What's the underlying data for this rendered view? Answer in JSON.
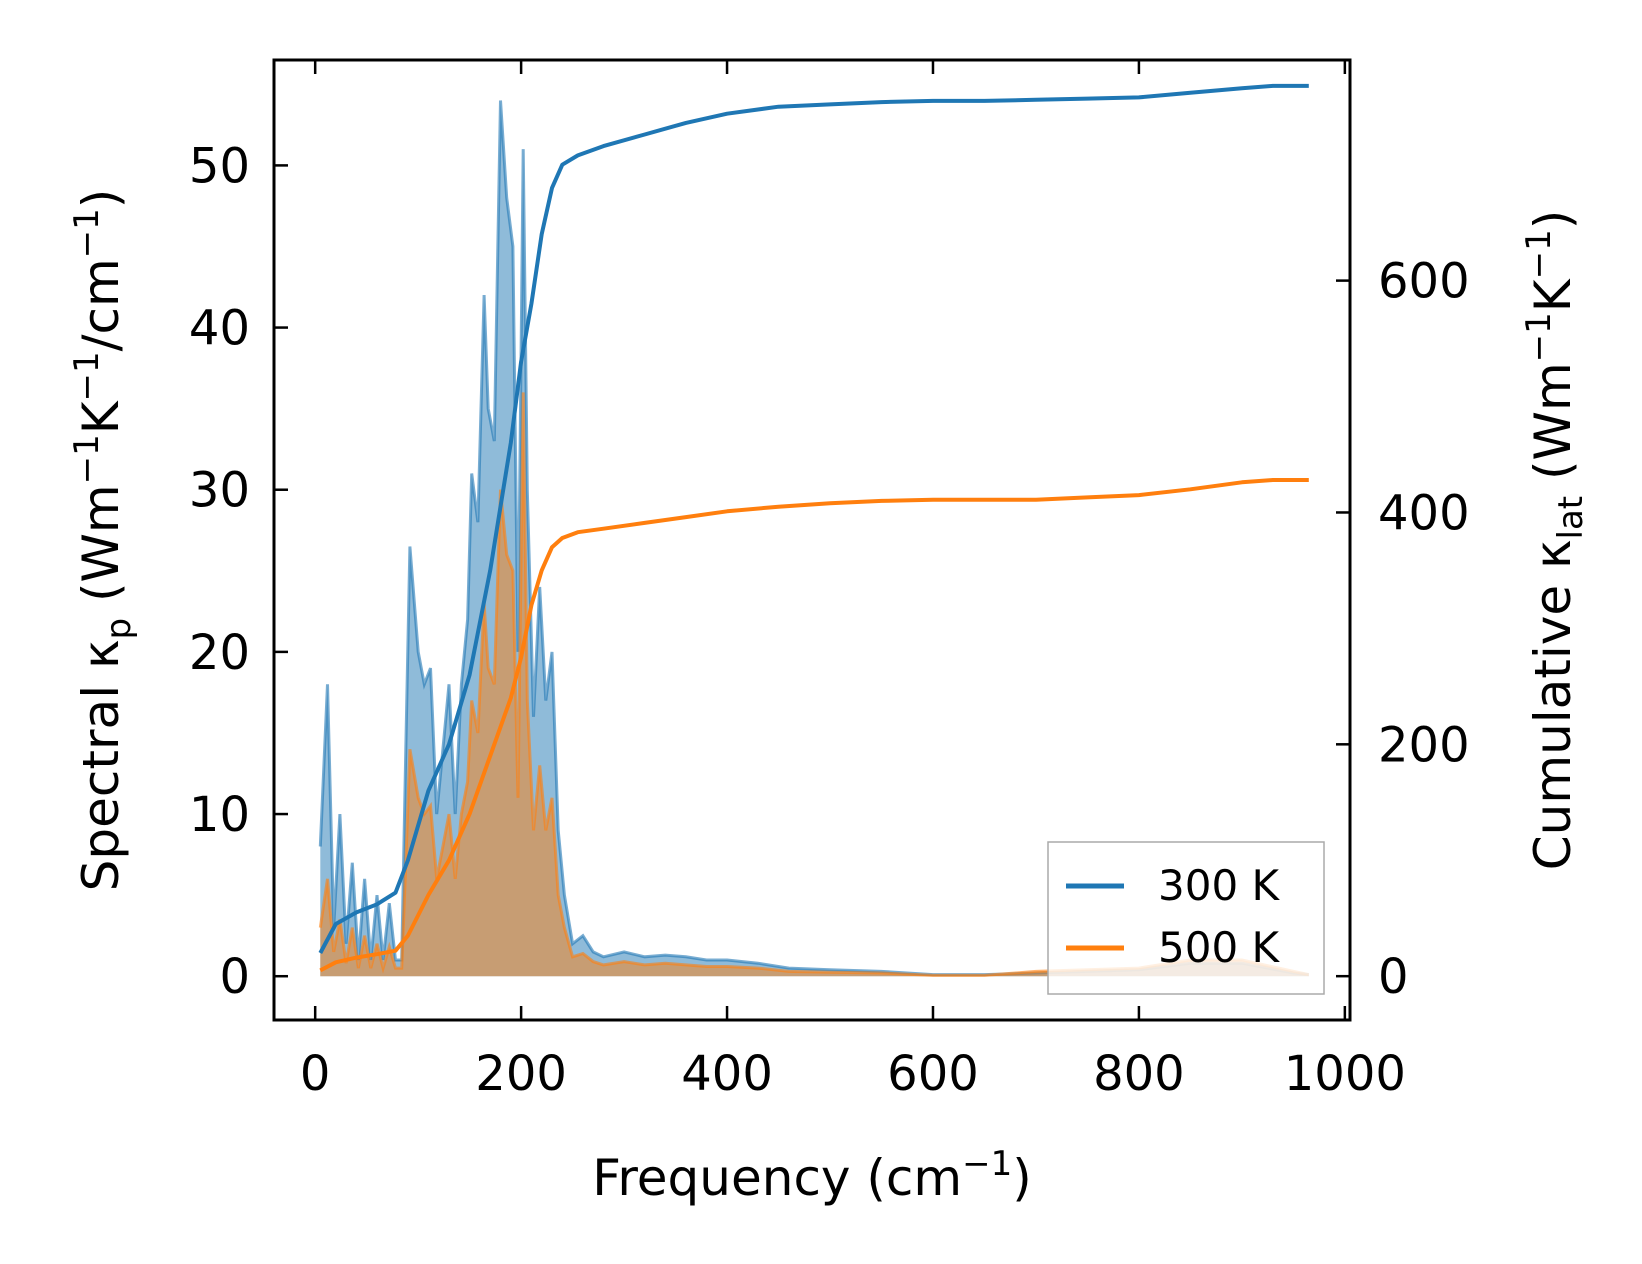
{
  "chart_data": {
    "type": "area",
    "xlabel_main": "Frequency (cm",
    "xlabel_sup": "−1",
    "xlabel_end": ")",
    "ylabel_left": {
      "prefix": "Spectral κ",
      "sub": "p",
      "mid": " (Wm",
      "sup1": "−1",
      "mid2": "K",
      "sup2": "−1",
      "mid3": "/cm",
      "sup3": "−1",
      "end": ")"
    },
    "ylabel_right": {
      "prefix": "Cumulative κ",
      "sub": "lat",
      "mid": " (Wm",
      "sup1": "−1",
      "mid2": "K",
      "sup2": "−1",
      "end": ")"
    },
    "xlim": [
      -40,
      1005
    ],
    "ylim_left": [
      -2.7,
      56.5
    ],
    "ylim_right": [
      -37.8,
      790.3
    ],
    "x_ticks": [
      0,
      200,
      400,
      600,
      800,
      1000
    ],
    "y_left_ticks": [
      0,
      10,
      20,
      30,
      40,
      50
    ],
    "y_right_ticks": [
      0,
      200,
      400,
      600
    ],
    "legend_position": "lower right",
    "series": [
      {
        "name": "300 K",
        "color": "#1f77b4",
        "spectral": [
          [
            5,
            8
          ],
          [
            12,
            18
          ],
          [
            18,
            3
          ],
          [
            24,
            10
          ],
          [
            30,
            2
          ],
          [
            36,
            7
          ],
          [
            42,
            1
          ],
          [
            48,
            6
          ],
          [
            54,
            1
          ],
          [
            60,
            5
          ],
          [
            66,
            1
          ],
          [
            72,
            4.5
          ],
          [
            78,
            1
          ],
          [
            84,
            1
          ],
          [
            88,
            14
          ],
          [
            92,
            26.5
          ],
          [
            100,
            20
          ],
          [
            106,
            18
          ],
          [
            112,
            19
          ],
          [
            118,
            10
          ],
          [
            124,
            14
          ],
          [
            130,
            18
          ],
          [
            136,
            10
          ],
          [
            142,
            18
          ],
          [
            148,
            22
          ],
          [
            152,
            31
          ],
          [
            158,
            28
          ],
          [
            164,
            42
          ],
          [
            168,
            35
          ],
          [
            174,
            33
          ],
          [
            180,
            54
          ],
          [
            186,
            48
          ],
          [
            192,
            45
          ],
          [
            197,
            20
          ],
          [
            202,
            51
          ],
          [
            206,
            30
          ],
          [
            212,
            16
          ],
          [
            218,
            24
          ],
          [
            224,
            17
          ],
          [
            230,
            20
          ],
          [
            236,
            9
          ],
          [
            242,
            5
          ],
          [
            250,
            2
          ],
          [
            260,
            2.5
          ],
          [
            270,
            1.5
          ],
          [
            280,
            1.2
          ],
          [
            300,
            1.5
          ],
          [
            320,
            1.2
          ],
          [
            340,
            1.3
          ],
          [
            360,
            1.2
          ],
          [
            380,
            1.0
          ],
          [
            400,
            1.0
          ],
          [
            430,
            0.8
          ],
          [
            460,
            0.5
          ],
          [
            500,
            0.4
          ],
          [
            550,
            0.3
          ],
          [
            600,
            0.1
          ],
          [
            650,
            0.1
          ],
          [
            700,
            0.2
          ],
          [
            750,
            0.3
          ],
          [
            800,
            0.4
          ],
          [
            850,
            0.8
          ],
          [
            900,
            0.8
          ],
          [
            950,
            0.2
          ],
          [
            965,
            0.1
          ]
        ],
        "cumulative": [
          [
            5,
            20
          ],
          [
            20,
            45
          ],
          [
            40,
            55
          ],
          [
            60,
            62
          ],
          [
            78,
            72
          ],
          [
            90,
            100
          ],
          [
            110,
            160
          ],
          [
            130,
            200
          ],
          [
            150,
            260
          ],
          [
            170,
            350
          ],
          [
            190,
            460
          ],
          [
            200,
            530
          ],
          [
            210,
            580
          ],
          [
            220,
            640
          ],
          [
            230,
            680
          ],
          [
            240,
            700
          ],
          [
            255,
            708
          ],
          [
            280,
            716
          ],
          [
            320,
            726
          ],
          [
            360,
            736
          ],
          [
            400,
            744
          ],
          [
            450,
            750
          ],
          [
            500,
            752
          ],
          [
            550,
            754
          ],
          [
            600,
            755
          ],
          [
            650,
            755
          ],
          [
            700,
            756
          ],
          [
            750,
            757
          ],
          [
            800,
            758
          ],
          [
            850,
            762
          ],
          [
            900,
            766
          ],
          [
            930,
            768
          ],
          [
            965,
            768
          ]
        ]
      },
      {
        "name": "500 K",
        "color": "#ff7f0e",
        "spectral": [
          [
            5,
            3
          ],
          [
            12,
            6
          ],
          [
            18,
            1.5
          ],
          [
            24,
            3.5
          ],
          [
            30,
            0.8
          ],
          [
            36,
            3
          ],
          [
            42,
            0.5
          ],
          [
            48,
            2.5
          ],
          [
            54,
            0.5
          ],
          [
            60,
            2
          ],
          [
            66,
            0.5
          ],
          [
            72,
            1.8
          ],
          [
            78,
            0.5
          ],
          [
            84,
            0.5
          ],
          [
            88,
            7
          ],
          [
            92,
            14
          ],
          [
            100,
            11
          ],
          [
            106,
            10
          ],
          [
            112,
            10.5
          ],
          [
            118,
            6
          ],
          [
            124,
            8
          ],
          [
            130,
            10
          ],
          [
            136,
            6
          ],
          [
            142,
            10
          ],
          [
            148,
            12
          ],
          [
            152,
            17
          ],
          [
            158,
            15
          ],
          [
            164,
            23
          ],
          [
            168,
            19
          ],
          [
            174,
            18
          ],
          [
            180,
            30
          ],
          [
            186,
            26
          ],
          [
            192,
            25
          ],
          [
            197,
            11
          ],
          [
            202,
            36
          ],
          [
            206,
            17
          ],
          [
            212,
            9
          ],
          [
            218,
            13
          ],
          [
            224,
            9
          ],
          [
            230,
            11
          ],
          [
            236,
            5
          ],
          [
            242,
            3
          ],
          [
            250,
            1.2
          ],
          [
            260,
            1.4
          ],
          [
            270,
            0.9
          ],
          [
            280,
            0.7
          ],
          [
            300,
            0.9
          ],
          [
            320,
            0.7
          ],
          [
            340,
            0.8
          ],
          [
            360,
            0.7
          ],
          [
            380,
            0.6
          ],
          [
            400,
            0.6
          ],
          [
            430,
            0.5
          ],
          [
            460,
            0.3
          ],
          [
            500,
            0.25
          ],
          [
            550,
            0.2
          ],
          [
            600,
            0.05
          ],
          [
            650,
            0.05
          ],
          [
            700,
            0.3
          ],
          [
            750,
            0.4
          ],
          [
            800,
            0.5
          ],
          [
            850,
            1.0
          ],
          [
            900,
            1.0
          ],
          [
            950,
            0.3
          ],
          [
            965,
            0.1
          ]
        ],
        "cumulative": [
          [
            5,
            5
          ],
          [
            20,
            12
          ],
          [
            40,
            16
          ],
          [
            60,
            19
          ],
          [
            78,
            22
          ],
          [
            90,
            35
          ],
          [
            110,
            70
          ],
          [
            130,
            100
          ],
          [
            150,
            140
          ],
          [
            170,
            190
          ],
          [
            190,
            240
          ],
          [
            200,
            275
          ],
          [
            210,
            320
          ],
          [
            220,
            350
          ],
          [
            230,
            370
          ],
          [
            240,
            378
          ],
          [
            255,
            383
          ],
          [
            280,
            386
          ],
          [
            320,
            391
          ],
          [
            360,
            396
          ],
          [
            400,
            401
          ],
          [
            450,
            405
          ],
          [
            500,
            408
          ],
          [
            550,
            410
          ],
          [
            600,
            411
          ],
          [
            650,
            411
          ],
          [
            700,
            411
          ],
          [
            750,
            413
          ],
          [
            800,
            415
          ],
          [
            850,
            420
          ],
          [
            900,
            426
          ],
          [
            930,
            428
          ],
          [
            965,
            428
          ]
        ]
      }
    ]
  }
}
